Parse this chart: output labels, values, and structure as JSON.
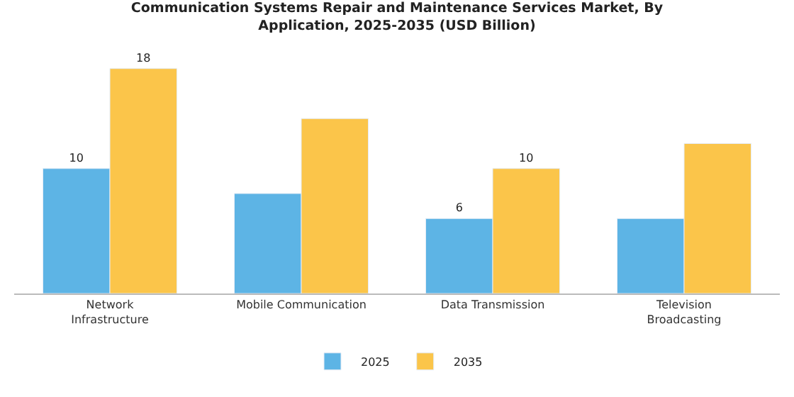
{
  "chart_data": {
    "type": "bar",
    "title": "Communication Systems Repair and Maintenance Services Market, By Application, 2025-2035 (USD Billion)",
    "categories": [
      "Network Infrastructure",
      "Mobile Communication",
      "Data Transmission",
      "Television Broadcasting"
    ],
    "series": [
      {
        "name": "2025",
        "color": "#5db4e5",
        "values": [
          10,
          8,
          6,
          6
        ],
        "value_labels": [
          "10",
          null,
          "6",
          null
        ]
      },
      {
        "name": "2035",
        "color": "#fbc54a",
        "values": [
          18,
          14,
          10,
          12
        ],
        "value_labels": [
          "18",
          null,
          "10",
          null
        ]
      }
    ],
    "tick_labels": "x",
    "legend": "bottom"
  }
}
